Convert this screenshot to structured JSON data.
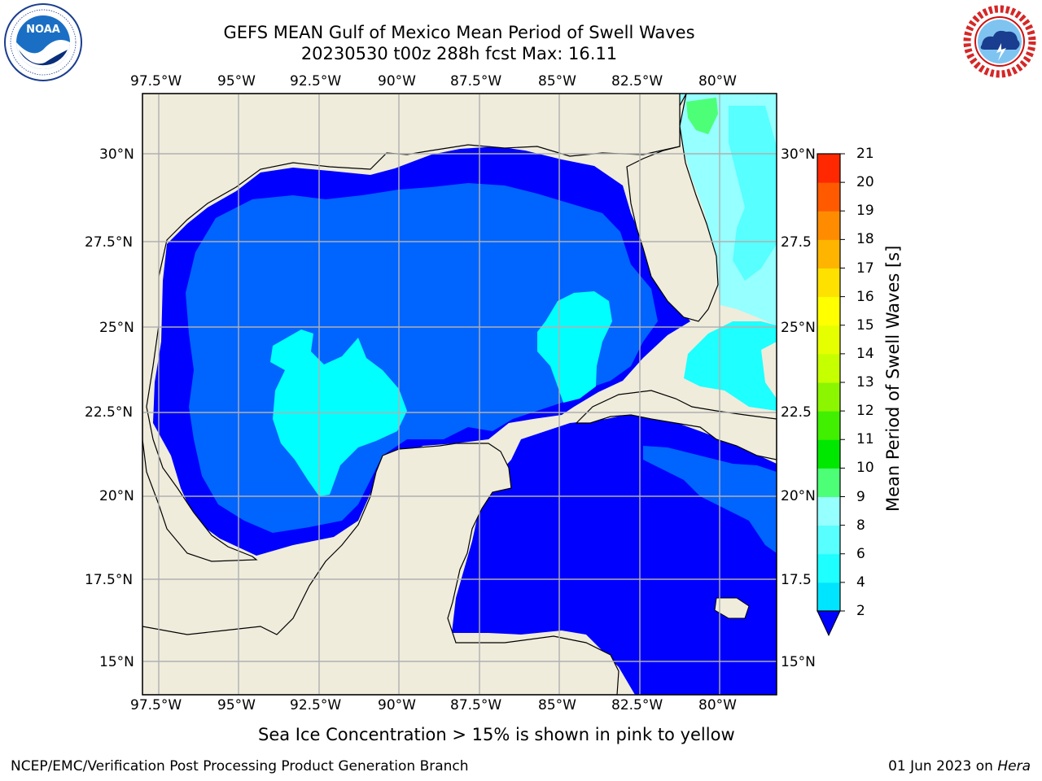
{
  "header": {
    "title": "GEFS MEAN Gulf of Mexico Mean Period of Swell Waves",
    "subtitle": "20230530 t00z 288h fcst   Max: 16.11"
  },
  "logos": {
    "left": {
      "icon": "noaa-logo",
      "text": "NOAA"
    },
    "right": {
      "icon": "national-weather-service-logo",
      "text": "NATIONAL WEATHER SERVICE"
    }
  },
  "map": {
    "lon_labels": [
      "97.5°W",
      "95°W",
      "92.5°W",
      "90°W",
      "87.5°W",
      "85°W",
      "82.5°W",
      "80°W"
    ],
    "lat_labels_left": [
      "30°N",
      "27.5°N",
      "25°N",
      "22.5°N",
      "20°N",
      "17.5°N",
      "15°N"
    ],
    "lat_labels_right": [
      "30°N",
      "27.5",
      "25°N",
      "22.5",
      "20°N",
      "17.5",
      "15°N"
    ],
    "colors": {
      "land": "#efecdc",
      "coast": "#000000",
      "grid": "#b0b0b0"
    }
  },
  "colorbar": {
    "label": "Mean Period of Swell Waves [s]",
    "ticks": [
      "2",
      "4",
      "6",
      "8",
      "9",
      "10",
      "11",
      "12",
      "13",
      "14",
      "15",
      "16",
      "17",
      "18",
      "19",
      "20",
      "21"
    ],
    "colors": [
      "#0064ff",
      "#00e5ff",
      "#1effff",
      "#57ffff",
      "#96ffff",
      "#4dff77",
      "#00e800",
      "#40f000",
      "#8cf500",
      "#c6ff00",
      "#e6ff00",
      "#ffff00",
      "#ffe100",
      "#ffb400",
      "#ff8c00",
      "#ff5a00",
      "#ff2800",
      "#ff0000"
    ],
    "extend_color": "#0000ff"
  },
  "note": "Sea Ice Concentration > 15% is shown in pink to yellow",
  "footer": {
    "left": "NCEP/EMC/Verification Post Processing Product Generation Branch",
    "date": "01 Jun 2023 on ",
    "machine": "Hera"
  }
}
